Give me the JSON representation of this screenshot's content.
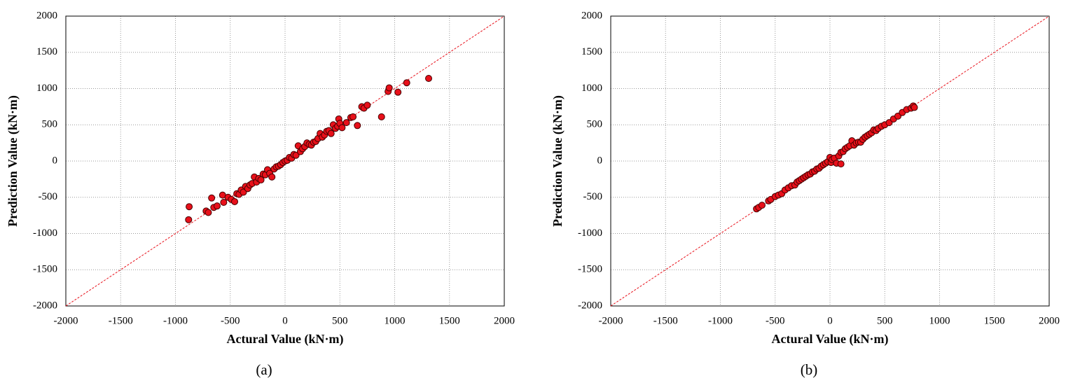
{
  "chart_data": [
    {
      "type": "scatter",
      "caption": "(a)",
      "x_label": "Actural Value (kN·m)",
      "y_label": "Prediction Value (kN·m)",
      "xlim": [
        -2000,
        2000
      ],
      "ylim": [
        -2000,
        2000
      ],
      "xticks": [
        -2000,
        -1500,
        -1000,
        -500,
        0,
        500,
        1000,
        1500,
        2000
      ],
      "yticks": [
        -2000,
        -1500,
        -1000,
        -500,
        0,
        500,
        1000,
        1500,
        2000
      ],
      "grid": true,
      "color": "#e8101a",
      "x": [
        -880,
        -875,
        -720,
        -700,
        -670,
        -650,
        -620,
        -570,
        -560,
        -520,
        -490,
        -460,
        -440,
        -420,
        -400,
        -380,
        -360,
        -340,
        -320,
        -300,
        -280,
        -260,
        -240,
        -220,
        -200,
        -180,
        -160,
        -140,
        -120,
        -100,
        -80,
        -60,
        -40,
        -20,
        0,
        20,
        40,
        60,
        80,
        100,
        120,
        140,
        160,
        180,
        200,
        220,
        240,
        260,
        280,
        300,
        320,
        340,
        360,
        380,
        400,
        420,
        440,
        460,
        480,
        490,
        500,
        520,
        560,
        600,
        620,
        660,
        700,
        720,
        750,
        880,
        940,
        950,
        1030,
        1110,
        1310
      ],
      "y": [
        -810,
        -630,
        -690,
        -710,
        -510,
        -640,
        -620,
        -470,
        -570,
        -500,
        -530,
        -560,
        -450,
        -460,
        -400,
        -430,
        -350,
        -380,
        -330,
        -310,
        -220,
        -290,
        -240,
        -260,
        -180,
        -190,
        -120,
        -170,
        -220,
        -110,
        -80,
        -70,
        -50,
        -20,
        0,
        10,
        50,
        40,
        90,
        80,
        210,
        130,
        170,
        200,
        250,
        230,
        220,
        260,
        270,
        310,
        380,
        330,
        360,
        410,
        420,
        380,
        500,
        450,
        480,
        580,
        520,
        460,
        530,
        600,
        610,
        490,
        750,
        730,
        770,
        610,
        960,
        1010,
        950,
        1080,
        1140
      ]
    },
    {
      "type": "scatter",
      "caption": "(b)",
      "x_label": "Actural Value (kN·m)",
      "y_label": "Prediction Value (kN·m)",
      "xlim": [
        -2000,
        2000
      ],
      "ylim": [
        -2000,
        2000
      ],
      "xticks": [
        -2000,
        -1500,
        -1000,
        -500,
        0,
        500,
        1000,
        1500,
        2000
      ],
      "yticks": [
        -2000,
        -1500,
        -1000,
        -500,
        0,
        500,
        1000,
        1500,
        2000
      ],
      "grid": true,
      "color": "#e8101a",
      "x": [
        -670,
        -650,
        -620,
        -560,
        -540,
        -500,
        -470,
        -440,
        -410,
        -380,
        -350,
        -320,
        -300,
        -280,
        -260,
        -240,
        -220,
        -200,
        -180,
        -160,
        -140,
        -120,
        -100,
        -80,
        -60,
        -40,
        -20,
        0,
        10,
        20,
        40,
        60,
        80,
        100,
        100,
        120,
        140,
        160,
        180,
        200,
        220,
        240,
        260,
        280,
        300,
        320,
        340,
        360,
        380,
        400,
        420,
        440,
        470,
        500,
        540,
        580,
        620,
        660,
        700,
        740,
        760,
        770
      ],
      "y": [
        -660,
        -640,
        -610,
        -550,
        -530,
        -490,
        -470,
        -450,
        -400,
        -370,
        -340,
        -330,
        -290,
        -270,
        -250,
        -230,
        -210,
        -190,
        -180,
        -150,
        -140,
        -110,
        -100,
        -70,
        -50,
        -30,
        -10,
        50,
        -20,
        20,
        40,
        -30,
        70,
        -40,
        120,
        130,
        170,
        190,
        210,
        280,
        220,
        250,
        260,
        260,
        300,
        330,
        350,
        370,
        390,
        430,
        420,
        450,
        480,
        500,
        530,
        580,
        620,
        670,
        710,
        730,
        760,
        740
      ]
    }
  ]
}
